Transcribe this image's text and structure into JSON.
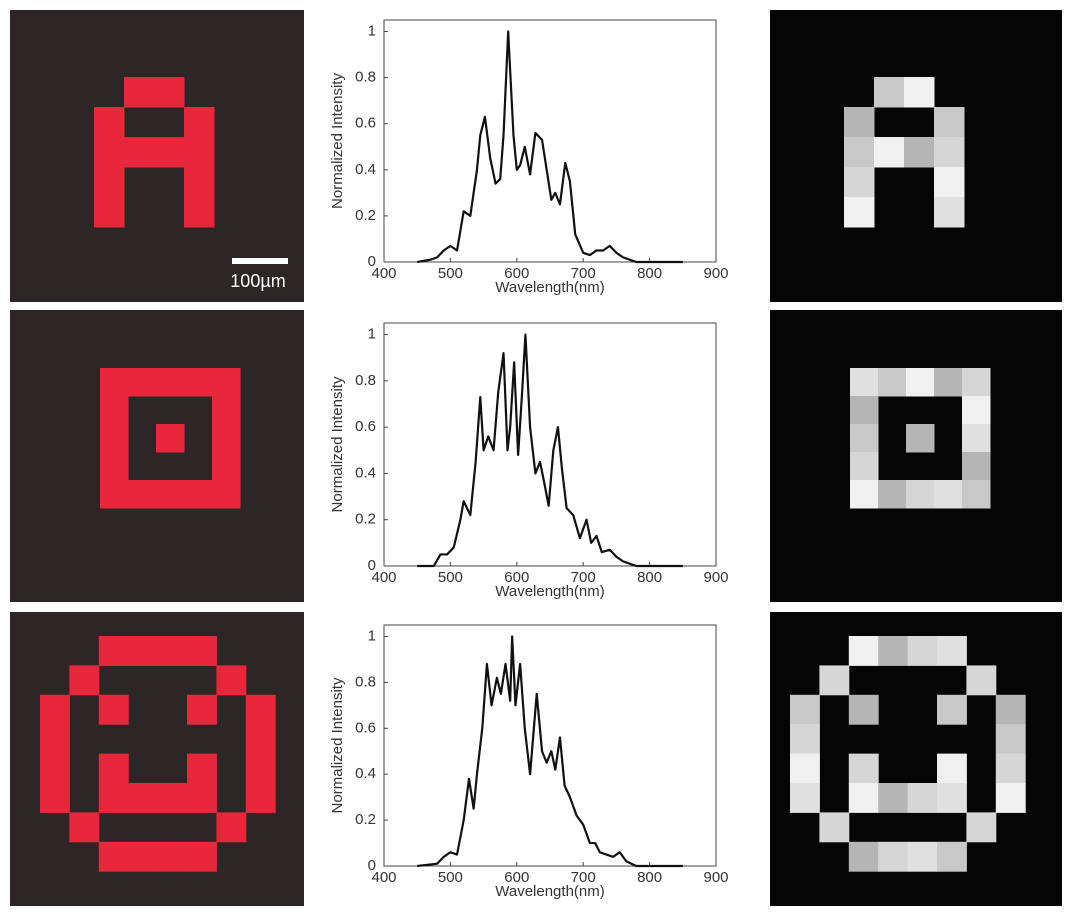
{
  "scale_bar": "100µm",
  "chart_data": [
    {
      "type": "line",
      "xlabel": "Wavelength(nm)",
      "ylabel": "Normalized Intensity",
      "xlim": [
        400,
        900
      ],
      "ylim": [
        0,
        1.05
      ],
      "xticks": [
        400,
        500,
        600,
        700,
        800,
        900
      ],
      "yticks": [
        0,
        0.2,
        0.4,
        0.6,
        0.8,
        1
      ],
      "x": [
        450,
        470,
        480,
        490,
        500,
        510,
        520,
        530,
        540,
        545,
        552,
        560,
        568,
        575,
        580,
        587,
        595,
        600,
        605,
        612,
        620,
        628,
        638,
        645,
        652,
        658,
        665,
        673,
        680,
        688,
        700,
        710,
        720,
        730,
        740,
        750,
        760,
        780,
        850
      ],
      "series": [
        {
          "color": "#111111",
          "values": [
            0,
            0.01,
            0.02,
            0.05,
            0.07,
            0.05,
            0.22,
            0.2,
            0.4,
            0.55,
            0.63,
            0.45,
            0.34,
            0.36,
            0.55,
            1.0,
            0.55,
            0.4,
            0.42,
            0.5,
            0.38,
            0.56,
            0.53,
            0.4,
            0.27,
            0.3,
            0.25,
            0.43,
            0.35,
            0.12,
            0.04,
            0.03,
            0.05,
            0.05,
            0.07,
            0.04,
            0.02,
            0,
            0
          ]
        }
      ]
    },
    {
      "type": "line",
      "xlabel": "Wavelength(nm)",
      "ylabel": "Normalized Intensity",
      "xlim": [
        400,
        900
      ],
      "ylim": [
        0,
        1.05
      ],
      "xticks": [
        400,
        500,
        600,
        700,
        800,
        900
      ],
      "yticks": [
        0,
        0.2,
        0.4,
        0.6,
        0.8,
        1
      ],
      "x": [
        450,
        475,
        485,
        495,
        505,
        515,
        520,
        530,
        538,
        545,
        550,
        557,
        565,
        572,
        580,
        586,
        590,
        596,
        602,
        608,
        613,
        620,
        628,
        635,
        642,
        648,
        655,
        662,
        668,
        675,
        685,
        695,
        705,
        712,
        720,
        728,
        740,
        750,
        760,
        780,
        850
      ],
      "series": [
        {
          "color": "#111111",
          "values": [
            0,
            0,
            0.05,
            0.05,
            0.08,
            0.2,
            0.28,
            0.22,
            0.45,
            0.73,
            0.5,
            0.56,
            0.5,
            0.75,
            0.92,
            0.5,
            0.6,
            0.88,
            0.48,
            0.75,
            1.0,
            0.6,
            0.4,
            0.45,
            0.35,
            0.26,
            0.5,
            0.6,
            0.42,
            0.25,
            0.22,
            0.12,
            0.2,
            0.1,
            0.13,
            0.06,
            0.07,
            0.04,
            0.02,
            0,
            0
          ]
        }
      ]
    },
    {
      "type": "line",
      "xlabel": "Wavelength(nm)",
      "ylabel": "Normalized Intensity",
      "xlim": [
        400,
        900
      ],
      "ylim": [
        0,
        1.05
      ],
      "xticks": [
        400,
        500,
        600,
        700,
        800,
        900
      ],
      "yticks": [
        0,
        0.2,
        0.4,
        0.6,
        0.8,
        1
      ],
      "x": [
        450,
        480,
        490,
        500,
        510,
        520,
        528,
        535,
        540,
        548,
        555,
        562,
        570,
        576,
        583,
        590,
        593,
        598,
        605,
        612,
        620,
        630,
        638,
        645,
        652,
        658,
        665,
        672,
        680,
        690,
        700,
        710,
        718,
        725,
        735,
        745,
        755,
        765,
        780,
        850
      ],
      "series": [
        {
          "color": "#111111",
          "values": [
            0,
            0.01,
            0.04,
            0.06,
            0.05,
            0.2,
            0.38,
            0.25,
            0.4,
            0.6,
            0.88,
            0.7,
            0.82,
            0.75,
            0.88,
            0.72,
            1.0,
            0.7,
            0.88,
            0.6,
            0.4,
            0.75,
            0.5,
            0.45,
            0.5,
            0.42,
            0.56,
            0.35,
            0.3,
            0.22,
            0.18,
            0.1,
            0.1,
            0.06,
            0.05,
            0.04,
            0.06,
            0.02,
            0,
            0
          ]
        }
      ]
    }
  ]
}
